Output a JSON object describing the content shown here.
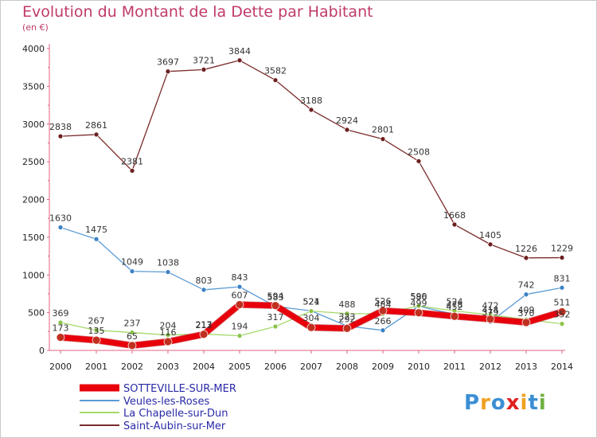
{
  "header": {
    "title": "Evolution du Montant de la Dette par Habitant",
    "subtitle": "(en €)"
  },
  "logo": {
    "text": "Proxiti",
    "colors": [
      "#3b8fd4",
      "#f0a020",
      "#3b8fd4",
      "#e02020",
      "#f0a020",
      "#3b8fd4",
      "#70b040"
    ]
  },
  "chart_data": {
    "type": "line",
    "title": "Evolution du Montant de la Dette par Habitant",
    "ylabel": "(en €)",
    "x": [
      2000,
      2001,
      2002,
      2003,
      2004,
      2005,
      2006,
      2007,
      2008,
      2009,
      2010,
      2011,
      2012,
      2013,
      2014
    ],
    "ylim": [
      0,
      4000
    ],
    "yticks": [
      0,
      500,
      1000,
      1500,
      2000,
      2500,
      3000,
      3500,
      4000
    ],
    "grid": false,
    "legend_position": "bottom-left",
    "series": [
      {
        "name": "SOTTEVILLE-SUR-MER",
        "color": "#e8000b",
        "dot": "#c03020",
        "width": 7,
        "values": [
          173,
          135,
          65,
          116,
          213,
          607,
          594,
          304,
          292,
          526,
          499,
          452,
          414,
          370,
          511
        ]
      },
      {
        "name": "Veules-les-Roses",
        "color": "#5b9bd5",
        "dot": "#3b82c4",
        "width": 1.3,
        "values": [
          1630,
          1475,
          1049,
          1038,
          803,
          843,
          583,
          524,
          323,
          266,
          586,
          478,
          379,
          742,
          831
        ]
      },
      {
        "name": "La Chapelle-sur-Dun",
        "color": "#a6d96a",
        "dot": "#8bc34a",
        "width": 1.3,
        "values": [
          369,
          267,
          237,
          204,
          217,
          194,
          317,
          521,
          488,
          484,
          590,
          524,
          472,
          409,
          352
        ]
      },
      {
        "name": "Saint-Aubin-sur-Mer",
        "color": "#7b2b2b",
        "dot": "#6d1f1f",
        "width": 1.3,
        "values": [
          2838,
          2861,
          2381,
          3697,
          3721,
          3844,
          3582,
          3188,
          2924,
          2801,
          2508,
          1668,
          1405,
          1226,
          1229
        ]
      }
    ]
  }
}
